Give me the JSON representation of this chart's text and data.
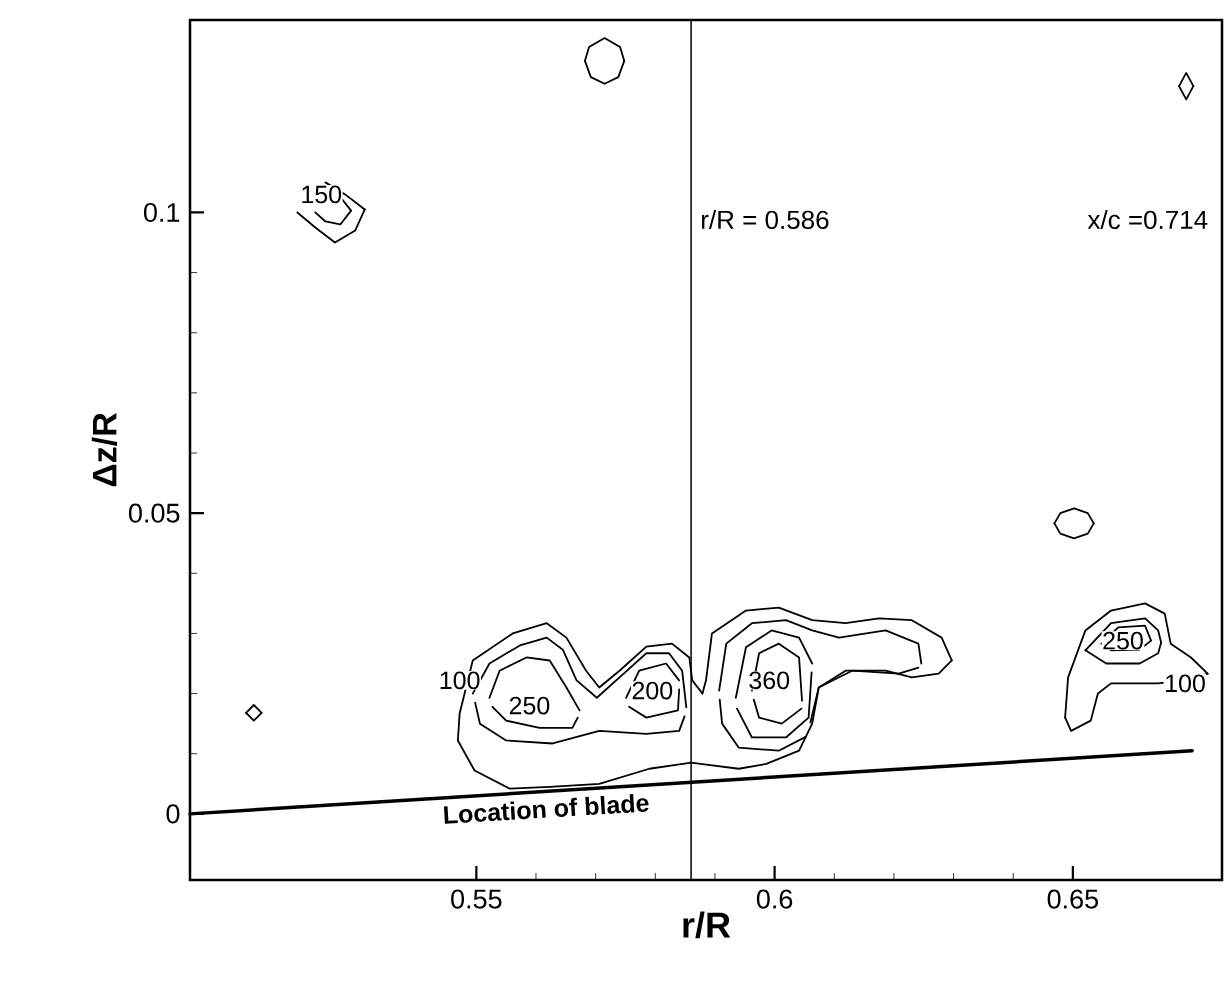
{
  "chart_data": {
    "type": "line",
    "xlabel": "r/R",
    "ylabel": "Δz/R",
    "xlim": [
      0.502,
      0.675
    ],
    "ylim": [
      -0.011,
      0.132
    ],
    "xticks": [
      0.55,
      0.6,
      0.65
    ],
    "yticks": [
      0,
      0.05,
      0.1
    ],
    "line_style": "solid",
    "marker": "none",
    "ref_lines": [
      {
        "axis": "x",
        "value": 0.586,
        "label": "r/R = 0.586",
        "color": "#000000"
      }
    ],
    "annotations": [
      "x/c =0.714",
      "Location of blade",
      {
        "text": "150",
        "x": 0.524,
        "y": 0.103
      },
      {
        "text": "100",
        "x": 0.5472,
        "y": 0.0222
      },
      {
        "text": "250",
        "x": 0.5589,
        "y": 0.018
      },
      {
        "text": "200",
        "x": 0.5795,
        "y": 0.0205
      },
      {
        "text": "360",
        "x": 0.5991,
        "y": 0.0222
      },
      {
        "text": "250",
        "x": 0.6584,
        "y": 0.0288
      },
      {
        "text": "100",
        "x": 0.6688,
        "y": 0.0217
      }
    ],
    "series": [
      {
        "color": "#000000",
        "x": [
          0.502,
          0.67
        ],
        "values": [
          0,
          0.0105
        ]
      },
      {
        "color": "#000000",
        "x": [
          0.5682,
          0.5689,
          0.5715,
          0.5741,
          0.5748
        ],
        "values": [
          0.1252,
          0.1275,
          0.129,
          0.1275,
          0.1252
        ]
      },
      {
        "color": "#000000",
        "x": [
          0.5682,
          0.5692,
          0.5715,
          0.5738,
          0.5748
        ],
        "values": [
          0.1252,
          0.1225,
          0.1214,
          0.1225,
          0.1252
        ]
      },
      {
        "color": "#000000",
        "x": [
          0.6678,
          0.669,
          0.6702
        ],
        "values": [
          0.121,
          0.1232,
          0.121
        ]
      },
      {
        "color": "#000000",
        "x": [
          0.6678,
          0.669,
          0.6702
        ],
        "values": [
          0.121,
          0.1188,
          0.121
        ]
      },
      {
        "color": "#000000",
        "x": [
          0.6469,
          0.6479,
          0.6502,
          0.6525,
          0.6535
        ],
        "values": [
          0.0483,
          0.05,
          0.0508,
          0.05,
          0.0483
        ]
      },
      {
        "color": "#000000",
        "x": [
          0.6469,
          0.6479,
          0.6502,
          0.6525,
          0.6535
        ],
        "values": [
          0.0483,
          0.0466,
          0.0458,
          0.0466,
          0.0483
        ]
      },
      {
        "color": "#000000",
        "x": [
          0.5114,
          0.5127,
          0.514
        ],
        "values": [
          0.0168,
          0.0181,
          0.0168
        ]
      },
      {
        "color": "#000000",
        "x": [
          0.5114,
          0.5127,
          0.514
        ],
        "values": [
          0.0168,
          0.0155,
          0.0168
        ]
      },
      {
        "color": "#000000",
        "x": [
          0.5247,
          0.528,
          0.5313
        ],
        "values": [
          0.105,
          0.103,
          0.1005
        ]
      },
      {
        "color": "#000000",
        "x": [
          0.52,
          0.523,
          0.5263,
          0.5297,
          0.5313
        ],
        "values": [
          0.1,
          0.0975,
          0.095,
          0.097,
          0.1005
        ]
      },
      {
        "color": "#000000",
        "x": [
          0.5275,
          0.529
        ],
        "values": [
          0.1022,
          0.1003
        ]
      },
      {
        "color": "#000000",
        "x": [
          0.523,
          0.5247,
          0.5272,
          0.529
        ],
        "values": [
          0.1,
          0.0985,
          0.098,
          0.1003
        ]
      },
      {
        "color": "#000000",
        "x": [
          0.5469,
          0.5472,
          0.5494,
          0.5561,
          0.5618,
          0.5651,
          0.5684,
          0.5706,
          0.574,
          0.5785,
          0.5828,
          0.5857,
          0.5862,
          0.5879
        ],
        "values": [
          0.0122,
          0.0167,
          0.0255,
          0.03,
          0.0317,
          0.0293,
          0.0238,
          0.021,
          0.0238,
          0.0278,
          0.0283,
          0.026,
          0.0222,
          0.02
        ]
      },
      {
        "color": "#000000",
        "x": [
          0.5879,
          0.5885,
          0.5895,
          0.5952,
          0.6007,
          0.6063,
          0.6119,
          0.6175,
          0.623,
          0.628,
          0.6297
        ],
        "values": [
          0.02,
          0.0222,
          0.03,
          0.0338,
          0.0343,
          0.0322,
          0.0317,
          0.0325,
          0.0322,
          0.0293,
          0.0255
        ]
      },
      {
        "color": "#000000",
        "x": [
          0.5469,
          0.5497,
          0.5556,
          0.5623,
          0.5706,
          0.579,
          0.586,
          0.594,
          0.5986,
          0.6041,
          0.6063,
          0.6074,
          0.6119,
          0.6186,
          0.623,
          0.6275,
          0.6297
        ],
        "values": [
          0.0122,
          0.0072,
          0.0042,
          0.0045,
          0.005,
          0.0075,
          0.0085,
          0.0075,
          0.0083,
          0.0105,
          0.015,
          0.021,
          0.0238,
          0.0238,
          0.0227,
          0.0233,
          0.0255
        ]
      },
      {
        "color": "#000000",
        "x": [
          0.5494,
          0.5522,
          0.5573,
          0.5618,
          0.5645,
          0.5668,
          0.5702,
          0.574,
          0.5785,
          0.5823,
          0.5845,
          0.5852
        ],
        "values": [
          0.02,
          0.025,
          0.028,
          0.0293,
          0.0273,
          0.0222,
          0.0193,
          0.0227,
          0.0267,
          0.0267,
          0.0238,
          0.0177
        ]
      },
      {
        "color": "#000000",
        "x": [
          0.5498,
          0.5506,
          0.555,
          0.5628,
          0.5706,
          0.5785,
          0.584,
          0.5849
        ],
        "values": [
          0.0185,
          0.015,
          0.0122,
          0.0117,
          0.0138,
          0.0133,
          0.0138,
          0.0162
        ]
      },
      {
        "color": "#000000",
        "x": [
          0.5522,
          0.5539,
          0.5584,
          0.5623,
          0.5651,
          0.5673
        ],
        "values": [
          0.0193,
          0.0238,
          0.026,
          0.0255,
          0.021,
          0.0172
        ]
      },
      {
        "color": "#000000",
        "x": [
          0.5527,
          0.555,
          0.5606,
          0.5661,
          0.567
        ],
        "values": [
          0.0178,
          0.0155,
          0.0143,
          0.0143,
          0.016
        ]
      },
      {
        "color": "#000000",
        "x": [
          0.5751,
          0.5773,
          0.5818,
          0.584
        ],
        "values": [
          0.0193,
          0.0238,
          0.025,
          0.0222
        ]
      },
      {
        "color": "#000000",
        "x": [
          0.5756,
          0.5785,
          0.5838,
          0.584
        ],
        "values": [
          0.0178,
          0.016,
          0.0172,
          0.0207
        ]
      },
      {
        "color": "#000000",
        "x": [
          0.5907,
          0.5919,
          0.5962,
          0.6019,
          0.6063,
          0.6108,
          0.6186,
          0.6241,
          0.6246
        ],
        "values": [
          0.0205,
          0.0283,
          0.0317,
          0.0322,
          0.0305,
          0.0293,
          0.0305,
          0.0283,
          0.025
        ]
      },
      {
        "color": "#000000",
        "x": [
          0.606,
          0.6074,
          0.613,
          0.6208,
          0.6241
        ],
        "values": [
          0.0152,
          0.021,
          0.0238,
          0.0233,
          0.0243
        ]
      },
      {
        "color": "#000000",
        "x": [
          0.5908,
          0.5912,
          0.594,
          0.6007,
          0.6052
        ],
        "values": [
          0.019,
          0.015,
          0.011,
          0.0105,
          0.0128
        ]
      },
      {
        "color": "#000000",
        "x": [
          0.5935,
          0.5952,
          0.5995,
          0.6041,
          0.6063
        ],
        "values": [
          0.0193,
          0.0277,
          0.0305,
          0.0293,
          0.025
        ]
      },
      {
        "color": "#000000",
        "x": [
          0.5937,
          0.5962,
          0.6019,
          0.6057,
          0.6062
        ],
        "values": [
          0.0175,
          0.0127,
          0.0127,
          0.016,
          0.0235
        ]
      },
      {
        "color": "#000000",
        "x": [
          0.5962,
          0.5974,
          0.6007,
          0.6041,
          0.6046
        ],
        "values": [
          0.0205,
          0.0267,
          0.0283,
          0.026,
          0.0188
        ]
      },
      {
        "color": "#000000",
        "x": [
          0.5965,
          0.5974,
          0.6012,
          0.6045
        ],
        "values": [
          0.019,
          0.016,
          0.015,
          0.0175
        ]
      },
      {
        "color": "#000000",
        "x": [
          0.6487,
          0.6492,
          0.6521,
          0.6564,
          0.6621,
          0.6654,
          0.6664,
          0.6698,
          0.6726
        ],
        "values": [
          0.016,
          0.0227,
          0.0305,
          0.0338,
          0.035,
          0.0333,
          0.0283,
          0.026,
          0.0233
        ]
      },
      {
        "color": "#000000",
        "x": [
          0.6487,
          0.6497,
          0.653,
          0.6542,
          0.6564,
          0.6643,
          0.6688,
          0.6726
        ],
        "values": [
          0.016,
          0.0138,
          0.0155,
          0.02,
          0.0217,
          0.0217,
          0.0222,
          0.0233
        ]
      },
      {
        "color": "#000000",
        "x": [
          0.6521,
          0.6564,
          0.6621,
          0.6643,
          0.6648
        ],
        "values": [
          0.0272,
          0.0317,
          0.0325,
          0.0305,
          0.0285
        ]
      },
      {
        "color": "#000000",
        "x": [
          0.6521,
          0.6556,
          0.6612,
          0.6643,
          0.6648
        ],
        "values": [
          0.0272,
          0.025,
          0.025,
          0.0267,
          0.0285
        ]
      },
      {
        "color": "#000000",
        "x": [
          0.6548,
          0.6576,
          0.6621,
          0.6631
        ],
        "values": [
          0.0283,
          0.031,
          0.0313,
          0.0288
        ]
      },
      {
        "color": "#000000",
        "x": [
          0.6548,
          0.6564,
          0.6612,
          0.6631
        ],
        "values": [
          0.0283,
          0.0272,
          0.0273,
          0.0288
        ]
      }
    ]
  }
}
